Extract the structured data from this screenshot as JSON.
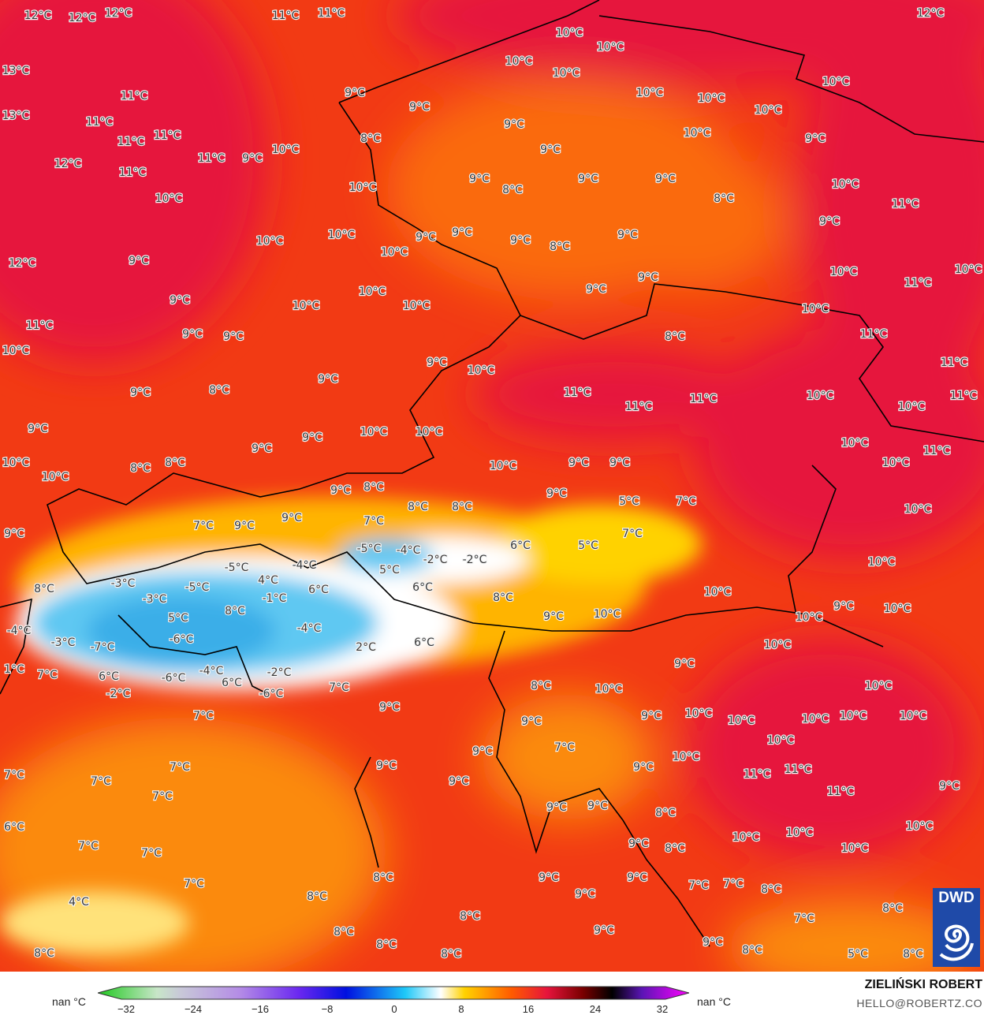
{
  "map": {
    "logo_text": "DWD",
    "colors": {
      "hot": "#e8123c",
      "warm": "#f23a14",
      "mild": "#fa6a0a",
      "cool": "#ffb400",
      "cold": "#ffffff",
      "freezing": "#3fb4ec",
      "border": "#000000"
    },
    "labels": [
      "12°C",
      "12°C",
      "12°C",
      "11°C",
      "11°C",
      "12°C",
      "10°C",
      "10°C",
      "10°C",
      "10°C",
      "13°C",
      "11°C",
      "9°C",
      "10°C",
      "10°C",
      "10°C",
      "10°C",
      "9°C",
      "13°C",
      "11°C",
      "9°C",
      "10°C",
      "9°C",
      "11°C",
      "11°C",
      "8°C",
      "9°C",
      "11°C",
      "9°C",
      "10°C",
      "12°C",
      "11°C",
      "9°C",
      "8°C",
      "9°C",
      "9°C",
      "10°C",
      "10°C",
      "10°C",
      "8°C",
      "11°C",
      "9°C",
      "10°C",
      "10°C",
      "9°C",
      "9°C",
      "9°C",
      "8°C",
      "9°C",
      "10°C",
      "12°C",
      "9°C",
      "9°C",
      "10°C",
      "11°C",
      "10°C",
      "9°C",
      "9°C",
      "10°C",
      "10°C",
      "10°C",
      "10°C",
      "11°C",
      "10°C",
      "9°C",
      "9°C",
      "8°C",
      "11°C",
      "9°C",
      "10°C",
      "11°C",
      "9°C",
      "9°C",
      "8°C",
      "11°C",
      "11°C",
      "11°C",
      "10°C",
      "10°C",
      "11°C",
      "9°C",
      "9°C",
      "10°C",
      "10°C",
      "9°C",
      "10°C",
      "11°C",
      "10°C",
      "8°C",
      "8°C",
      "10°C",
      "10°C",
      "9°C",
      "9°C",
      "10°C",
      "9°C",
      "8°C",
      "9°C",
      "5°C",
      "7°C",
      "8°C",
      "8°C",
      "10°C",
      "7°C",
      "9°C",
      "9°C",
      "7°C",
      "7°C",
      "9°C",
      "6°C",
      "5°C",
      "-5°C",
      "-4°C",
      "-2°C",
      "-2°C",
      "10°C",
      "-5°C",
      "-4°C",
      "5°C",
      "4°C",
      "-3°C",
      "-5°C",
      "6°C",
      "6°C",
      "8°C",
      "10°C",
      "-1°C",
      "-3°C",
      "5°C",
      "8°C",
      "8°C",
      "9°C",
      "10°C",
      "9°C",
      "10°C",
      "10°C",
      "-4°C",
      "-4°C",
      "-3°C",
      "-7°C",
      "-6°C",
      "2°C",
      "6°C",
      "10°C",
      "1°C",
      "7°C",
      "6°C",
      "-2°C",
      "-6°C",
      "-4°C",
      "-2°C",
      "-6°C",
      "6°C",
      "9°C",
      "7°C",
      "8°C",
      "10°C",
      "10°C",
      "9°C",
      "7°C",
      "9°C",
      "9°C",
      "10°C",
      "10°C",
      "10°C",
      "10°C",
      "10°C",
      "10°C",
      "9°C",
      "7°C",
      "9°C",
      "7°C",
      "9°C",
      "10°C",
      "11°C",
      "11°C",
      "7°C",
      "7°C",
      "9°C",
      "7°C",
      "11°C",
      "9°C",
      "9°C",
      "9°C",
      "8°C",
      "6°C",
      "10°C",
      "10°C",
      "10°C",
      "7°C",
      "9°C",
      "8°C",
      "10°C",
      "7°C",
      "8°C",
      "9°C",
      "9°C",
      "7°C",
      "7°C",
      "7°C",
      "8°C",
      "4°C",
      "8°C",
      "9°C",
      "8°C",
      "7°C",
      "8°C",
      "9°C",
      "8°C",
      "8°C",
      "9°C",
      "8°C",
      "8°C",
      "8°C",
      "5°C",
      "8°C"
    ]
  },
  "legend": {
    "left_label": "nan °C",
    "right_label": "nan °C",
    "ticks": [
      "−32",
      "−24",
      "−16",
      "−8",
      "0",
      "8",
      "16",
      "24",
      "32"
    ],
    "range": [
      -32,
      32
    ]
  },
  "credit": {
    "name": "ZIELIŃSKI ROBERT",
    "email": "HELLO@ROBERTZ.CO"
  }
}
